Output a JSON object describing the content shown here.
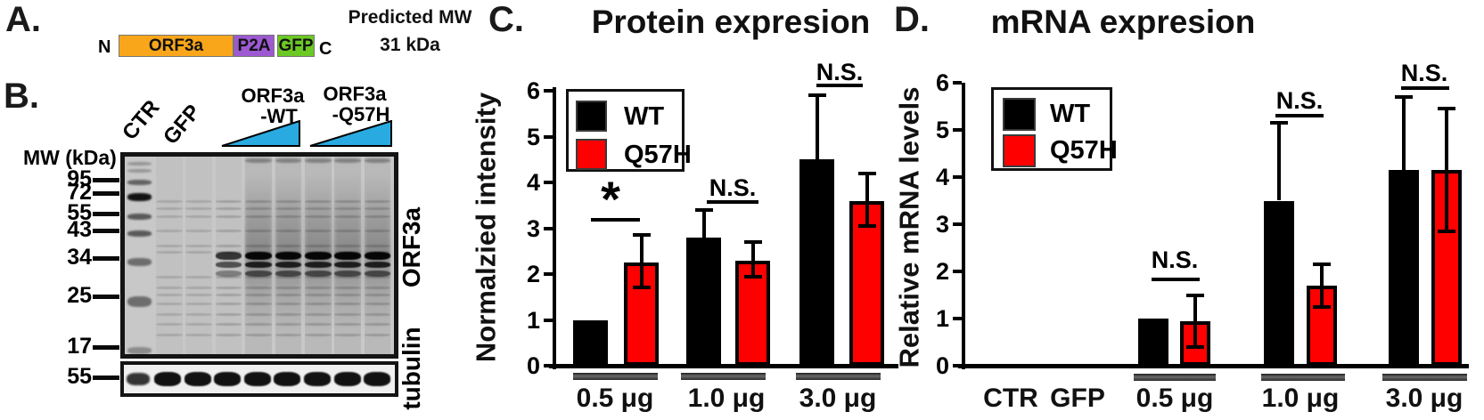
{
  "figure": {
    "panel_a": {
      "label": "A.",
      "n_terminus": "N",
      "c_terminus": "C",
      "segments": [
        {
          "label": "ORF3a",
          "color": "#F9A61A"
        },
        {
          "label": "P2A",
          "color": "#9D59D2"
        },
        {
          "label": "GFP",
          "color": "#6CC823"
        }
      ],
      "predicted_mw_title": "Predicted MW",
      "predicted_mw_value": "31 kDa"
    },
    "panel_b": {
      "label": "B.",
      "mw_axis_title": "MW (kDa)",
      "mw_markers": [
        "95",
        "72",
        "55",
        "43",
        "34",
        "25",
        "17"
      ],
      "tubulin_marker": "55",
      "lane_header_labels": [
        "CTR",
        "GFP"
      ],
      "dose_groups": [
        {
          "line1": "ORF3a",
          "line2": "-WT"
        },
        {
          "line1": "ORF3a",
          "line2": "-Q57H"
        }
      ],
      "wedge_color": "#29ABE2",
      "blot_row_labels": [
        "ORF3a",
        "tubulin"
      ],
      "lanes": [
        {
          "name": "MW ladder",
          "type": "ladder"
        },
        {
          "name": "CTR",
          "type": "sample",
          "level": "faint"
        },
        {
          "name": "GFP",
          "type": "sample",
          "level": "faint"
        },
        {
          "name": "ORF3a-WT low",
          "type": "sample",
          "level": "medium"
        },
        {
          "name": "ORF3a-WT mid",
          "type": "sample",
          "level": "strong"
        },
        {
          "name": "ORF3a-WT high",
          "type": "sample",
          "level": "strong"
        },
        {
          "name": "ORF3a-Q57H low",
          "type": "sample",
          "level": "strong"
        },
        {
          "name": "ORF3a-Q57H mid",
          "type": "sample",
          "level": "strong"
        },
        {
          "name": "ORF3a-Q57H high",
          "type": "sample",
          "level": "strong"
        }
      ]
    },
    "panel_c": {
      "label": "C."
    },
    "panel_d": {
      "label": "D."
    }
  },
  "chart_data": [
    {
      "id": "C",
      "type": "bar",
      "title": "Protein expresion",
      "xlabel": "",
      "ylabel": "Normalzied intensity",
      "ylim": [
        0,
        6
      ],
      "yticks": [
        "0",
        "1",
        "2",
        "3",
        "4",
        "5",
        "6"
      ],
      "categories": [
        "0.5 μg",
        "1.0 μg",
        "3.0 μg"
      ],
      "series": [
        {
          "name": "WT",
          "color": "#000000",
          "values": [
            1.0,
            2.8,
            4.5
          ],
          "err_low": [
            null,
            null,
            null
          ],
          "err_high": [
            null,
            3.4,
            5.9
          ]
        },
        {
          "name": "Q57H",
          "color": "#FF0000",
          "values": [
            2.25,
            2.3,
            3.6
          ],
          "err_low": [
            1.7,
            1.95,
            3.05
          ],
          "err_high": [
            2.85,
            2.7,
            4.2
          ]
        }
      ],
      "significance": [
        {
          "category": "0.5 μg",
          "label": "*"
        },
        {
          "category": "1.0 μg",
          "label": "N.S."
        },
        {
          "category": "3.0 μg",
          "label": "N.S."
        }
      ],
      "legend": [
        "WT",
        "Q57H"
      ],
      "legend_position": "top-left",
      "grid": false
    },
    {
      "id": "D",
      "type": "bar",
      "title": "mRNA expresion",
      "xlabel": "",
      "ylabel": "Relative mRNA levels",
      "ylim": [
        0,
        6
      ],
      "yticks": [
        "0",
        "1",
        "2",
        "3",
        "4",
        "5",
        "6"
      ],
      "categories": [
        "CTR",
        "GFP",
        "0.5 μg",
        "1.0 μg",
        "3.0 μg"
      ],
      "series": [
        {
          "name": "WT",
          "color": "#000000",
          "values": [
            0,
            0.04,
            1.0,
            3.5,
            4.15
          ],
          "err_low": [
            null,
            null,
            null,
            null,
            null
          ],
          "err_high": [
            null,
            null,
            null,
            5.15,
            5.7
          ]
        },
        {
          "name": "Q57H",
          "color": "#FF0000",
          "values": [
            null,
            null,
            0.95,
            1.7,
            4.15
          ],
          "err_low": [
            null,
            null,
            0.4,
            1.25,
            2.85
          ],
          "err_high": [
            null,
            null,
            1.5,
            2.15,
            5.45
          ]
        }
      ],
      "significance": [
        {
          "category": "0.5 μg",
          "label": "N.S."
        },
        {
          "category": "1.0 μg",
          "label": "N.S."
        },
        {
          "category": "3.0 μg",
          "label": "N.S."
        }
      ],
      "legend": [
        "WT",
        "Q57H"
      ],
      "legend_position": "top-left",
      "grid": false
    }
  ]
}
